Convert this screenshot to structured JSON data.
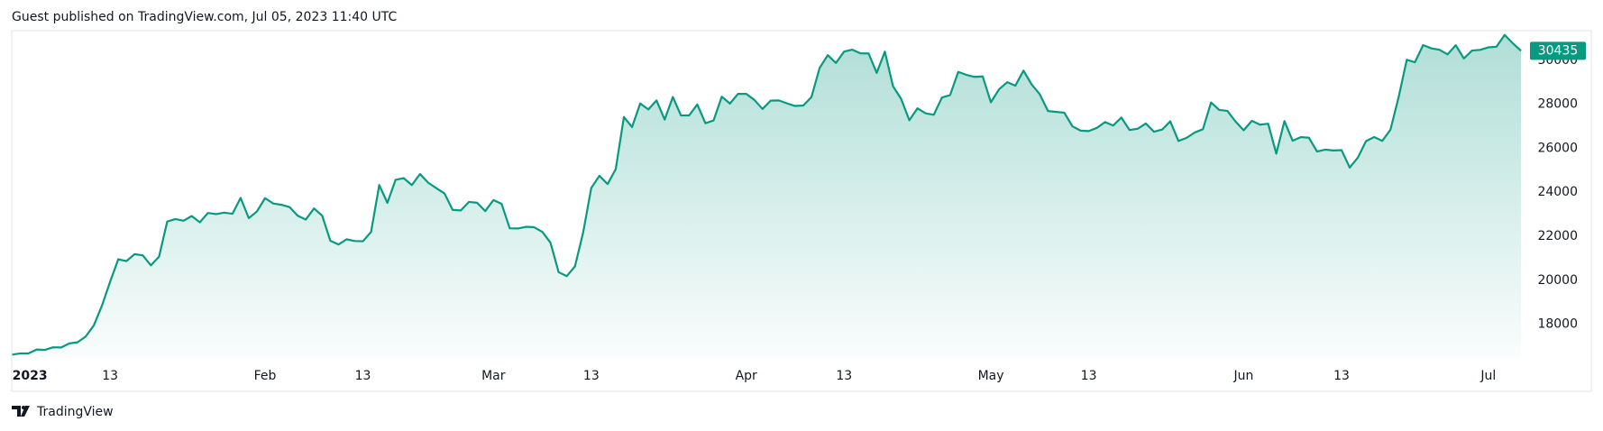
{
  "header": "Guest published on TradingView.com, Jul 05, 2023 11:40 UTC",
  "footer": "TradingView",
  "chart_data": {
    "type": "area",
    "color": "#089981",
    "grid": false,
    "x": [
      1,
      2,
      3,
      4,
      5,
      6,
      7,
      8,
      9,
      10,
      11,
      12,
      13,
      14,
      15,
      16,
      17,
      18,
      19,
      20,
      21,
      22,
      23,
      24,
      25,
      26,
      27,
      28,
      29,
      30,
      31,
      32,
      33,
      34,
      35,
      36,
      37,
      38,
      39,
      40,
      41,
      42,
      43,
      44,
      45,
      46,
      47,
      48,
      49,
      50,
      51,
      52,
      53,
      54,
      55,
      56,
      57,
      58,
      59,
      60,
      61,
      62,
      63,
      64,
      65,
      66,
      67,
      68,
      69,
      70,
      71,
      72,
      73,
      74,
      75,
      76,
      77,
      78,
      79,
      80,
      81,
      82,
      83,
      84,
      85,
      86,
      87,
      88,
      89,
      90,
      91,
      92,
      93,
      94,
      95,
      96,
      97,
      98,
      99,
      100,
      101,
      102,
      103,
      104,
      105,
      106,
      107,
      108,
      109,
      110,
      111,
      112,
      113,
      114,
      115,
      116,
      117,
      118,
      119,
      120,
      121,
      122,
      123,
      124,
      125,
      126,
      127,
      128,
      129,
      130,
      131,
      132,
      133,
      134,
      135,
      136,
      137,
      138,
      139,
      140,
      141,
      142,
      143,
      144,
      145,
      146,
      147,
      148,
      149,
      150,
      151,
      152,
      153,
      154,
      155,
      156,
      157,
      158,
      159,
      160,
      161,
      162,
      163,
      164,
      165,
      166,
      167,
      168,
      169,
      170,
      171,
      172,
      173,
      174,
      175,
      176,
      177,
      178,
      179,
      180,
      181,
      182,
      183,
      184,
      185,
      186
    ],
    "values": [
      16616,
      16672,
      16675,
      16850,
      16831,
      16950,
      16943,
      17127,
      17178,
      17440,
      17943,
      18846,
      19930,
      20954,
      20871,
      21185,
      21132,
      20677,
      21071,
      22667,
      22783,
      22707,
      22919,
      22635,
      23060,
      23009,
      23074,
      23022,
      23743,
      22826,
      23125,
      23733,
      23491,
      23431,
      23326,
      22933,
      22762,
      23264,
      22939,
      21797,
      21625,
      21862,
      21783,
      21773,
      22199,
      24327,
      23517,
      24565,
      24641,
      24328,
      24829,
      24436,
      24188,
      23947,
      23199,
      23174,
      23561,
      23522,
      23147,
      23646,
      23475,
      22362,
      22354,
      22430,
      22410,
      22197,
      21705,
      20363,
      20187,
      20633,
      22163,
      24197,
      24746,
      24375,
      25052,
      27423,
      26965,
      28038,
      27767,
      28176,
      27307,
      28333,
      27493,
      27495,
      27994,
      27139,
      27268,
      28348,
      28033,
      28478,
      28473,
      28200,
      27790,
      28168,
      28177,
      28044,
      27925,
      27947,
      28333,
      29653,
      30235,
      29880,
      30399,
      30485,
      30319,
      30316,
      29431,
      30398,
      28822,
      28245,
      27276,
      27817,
      27591,
      27525,
      28307,
      28422,
      29473,
      29340,
      29248,
      29268,
      28091,
      28681,
      29006,
      28847,
      29534,
      28904,
      28455,
      27695,
      27654,
      27621,
      27000,
      26805,
      26784,
      26930,
      27192,
      27036,
      27399,
      26833,
      26890,
      27129,
      26753,
      26850,
      27226,
      26334,
      26476,
      26719,
      26868,
      28085,
      27745,
      27702,
      27219,
      26819,
      27249,
      27075,
      27119,
      25760,
      27238,
      26345,
      26508,
      26480,
      25851,
      25940,
      25902,
      25918,
      25124,
      25576,
      26327,
      26510,
      26336,
      26851,
      28327,
      30027,
      29912,
      30695,
      30548,
      30480,
      30271,
      30689,
      30086,
      30445,
      30477,
      30590,
      30620,
      31156,
      30777,
      30435
    ],
    "xlim": [
      1,
      186
    ],
    "xticks": [
      {
        "value": 1,
        "label": "2023"
      },
      {
        "value": 13,
        "label": "13"
      },
      {
        "value": 32,
        "label": "Feb"
      },
      {
        "value": 44,
        "label": "13"
      },
      {
        "value": 60,
        "label": "Mar"
      },
      {
        "value": 72,
        "label": "13"
      },
      {
        "value": 91,
        "label": "Apr"
      },
      {
        "value": 103,
        "label": "13"
      },
      {
        "value": 121,
        "label": "May"
      },
      {
        "value": 133,
        "label": "13"
      },
      {
        "value": 152,
        "label": "Jun"
      },
      {
        "value": 164,
        "label": "13"
      },
      {
        "value": 182,
        "label": "Jul"
      }
    ],
    "ylim": [
      16465,
      31350
    ],
    "yticks": [
      18000,
      20000,
      22000,
      24000,
      26000,
      28000,
      30000
    ]
  }
}
